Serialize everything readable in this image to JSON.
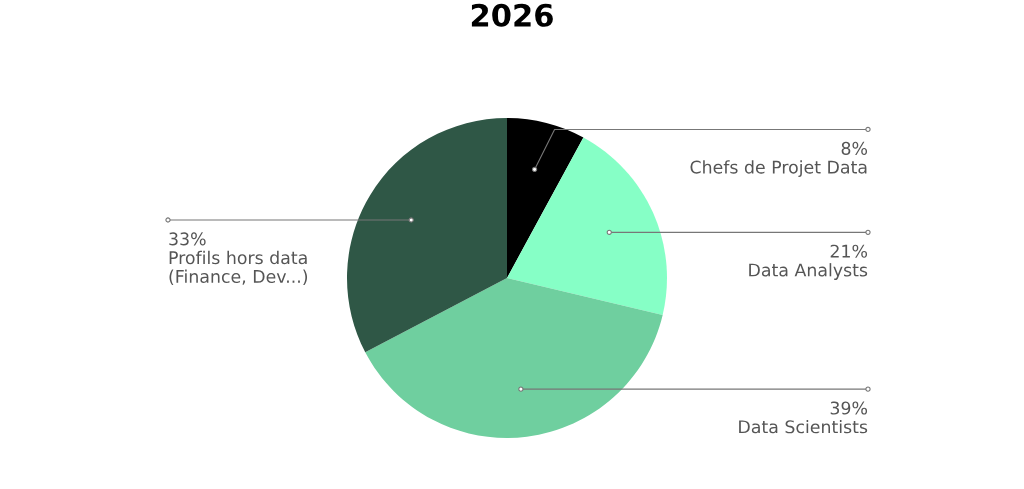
{
  "chart_data": {
    "type": "pie",
    "title": "2026",
    "categories": [
      "Chefs de Projet Data",
      "Data Analysts",
      "Data Scientists",
      "Profils hors data\n(Finance, Dev...)"
    ],
    "values": [
      8,
      21,
      39,
      33
    ],
    "value_labels": [
      "8%",
      "21%",
      "39%",
      "33%"
    ],
    "colors": [
      "#000000",
      "#86ffc6",
      "#6fcf9f",
      "#2f5746"
    ]
  }
}
